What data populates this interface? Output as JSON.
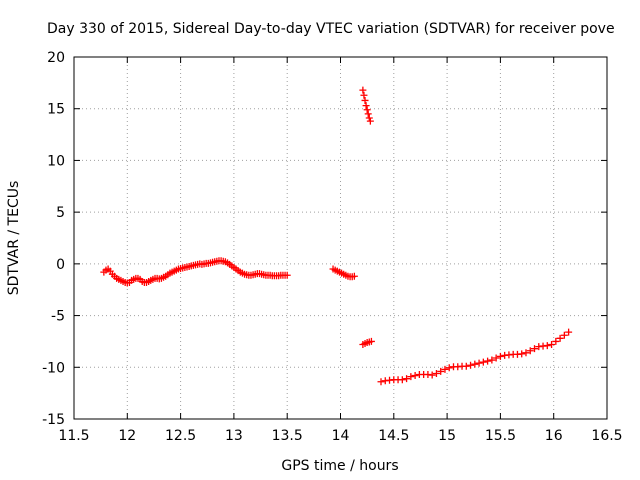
{
  "chart_data": {
    "type": "scatter",
    "title": "Day 330 of 2015, Sidereal Day-to-day VTEC variation (SDTVAR) for receiver pove",
    "xlabel": "GPS time / hours",
    "ylabel": "SDTVAR / TECUs",
    "xlim": [
      11.5,
      16.5
    ],
    "ylim": [
      -15,
      20
    ],
    "xticks": [
      "11.5",
      "12",
      "12.5",
      "13",
      "13.5",
      "14",
      "14.5",
      "15",
      "15.5",
      "16",
      "16.5"
    ],
    "yticks": [
      "-15",
      "-10",
      "-5",
      "0",
      "5",
      "10",
      "15",
      "20"
    ],
    "grid": true,
    "marker": "plus",
    "color": "#ff0000",
    "series": [
      {
        "name": "segment-1",
        "x": [
          11.78,
          11.8,
          11.82,
          11.84,
          11.86,
          11.88,
          11.9,
          11.92,
          11.94,
          11.96,
          11.98,
          12.0,
          12.02,
          12.04,
          12.06,
          12.08,
          12.1,
          12.12,
          12.14,
          12.16,
          12.18,
          12.2,
          12.22,
          12.24,
          12.26,
          12.28,
          12.3,
          12.32,
          12.34,
          12.36,
          12.38,
          12.4,
          12.42,
          12.44,
          12.46,
          12.48,
          12.5,
          12.52,
          12.54,
          12.56,
          12.58,
          12.6,
          12.62,
          12.64,
          12.66,
          12.68,
          12.7,
          12.72,
          12.74,
          12.76,
          12.78,
          12.8,
          12.82,
          12.84,
          12.86,
          12.88,
          12.9,
          12.92,
          12.94,
          12.96,
          12.98,
          13.0,
          13.02,
          13.04,
          13.06,
          13.08,
          13.1,
          13.12,
          13.14,
          13.16,
          13.18,
          13.2,
          13.22,
          13.24,
          13.26,
          13.28,
          13.3,
          13.32,
          13.34,
          13.36,
          13.38,
          13.4,
          13.42,
          13.44,
          13.46,
          13.48,
          13.5
        ],
        "y": [
          -0.8,
          -0.6,
          -0.5,
          -0.7,
          -1.0,
          -1.2,
          -1.4,
          -1.5,
          -1.6,
          -1.7,
          -1.8,
          -1.85,
          -1.8,
          -1.6,
          -1.5,
          -1.4,
          -1.4,
          -1.5,
          -1.7,
          -1.8,
          -1.8,
          -1.7,
          -1.6,
          -1.5,
          -1.4,
          -1.4,
          -1.45,
          -1.4,
          -1.3,
          -1.2,
          -1.05,
          -0.9,
          -0.8,
          -0.7,
          -0.6,
          -0.5,
          -0.45,
          -0.4,
          -0.35,
          -0.3,
          -0.25,
          -0.2,
          -0.15,
          -0.1,
          -0.05,
          0.0,
          -0.05,
          0.0,
          0.05,
          0.05,
          0.1,
          0.15,
          0.2,
          0.25,
          0.3,
          0.3,
          0.25,
          0.2,
          0.1,
          -0.05,
          -0.2,
          -0.35,
          -0.5,
          -0.65,
          -0.8,
          -0.9,
          -1.0,
          -1.05,
          -1.1,
          -1.1,
          -1.05,
          -1.0,
          -0.95,
          -0.95,
          -1.0,
          -1.05,
          -1.1,
          -1.1,
          -1.1,
          -1.15,
          -1.15,
          -1.15,
          -1.15,
          -1.1,
          -1.1,
          -1.1,
          -1.1
        ]
      },
      {
        "name": "segment-2",
        "x": [
          13.93,
          13.95,
          13.97,
          13.99,
          14.01,
          14.03,
          14.05,
          14.07,
          14.09,
          14.11,
          14.13
        ],
        "y": [
          -0.5,
          -0.6,
          -0.7,
          -0.8,
          -0.9,
          -1.0,
          -1.1,
          -1.2,
          -1.25,
          -1.25,
          -1.2
        ]
      },
      {
        "name": "segment-3",
        "x": [
          14.21,
          14.22,
          14.23,
          14.24,
          14.25,
          14.26,
          14.27,
          14.28
        ],
        "y": [
          16.8,
          16.3,
          15.8,
          15.3,
          14.9,
          14.5,
          14.1,
          13.8
        ]
      },
      {
        "name": "segment-4",
        "x": [
          14.21,
          14.23,
          14.25,
          14.27,
          14.29
        ],
        "y": [
          -7.8,
          -7.7,
          -7.6,
          -7.55,
          -7.5
        ]
      },
      {
        "name": "segment-5",
        "x": [
          14.38,
          14.42,
          14.46,
          14.5,
          14.54,
          14.58,
          14.62,
          14.66,
          14.7,
          14.74,
          14.78,
          14.82,
          14.86,
          14.9,
          14.94,
          14.98,
          15.02,
          15.06,
          15.1,
          15.14,
          15.18,
          15.22,
          15.26,
          15.3,
          15.34,
          15.38,
          15.42,
          15.46,
          15.5,
          15.54,
          15.58,
          15.62,
          15.66,
          15.7,
          15.74,
          15.78,
          15.82,
          15.86,
          15.9,
          15.94,
          15.98,
          16.02,
          16.06,
          16.1,
          16.14
        ],
        "y": [
          -11.4,
          -11.3,
          -11.25,
          -11.2,
          -11.2,
          -11.2,
          -11.1,
          -10.9,
          -10.8,
          -10.7,
          -10.7,
          -10.7,
          -10.75,
          -10.6,
          -10.4,
          -10.2,
          -10.05,
          -9.95,
          -9.95,
          -9.9,
          -9.9,
          -9.8,
          -9.7,
          -9.6,
          -9.5,
          -9.4,
          -9.3,
          -9.1,
          -8.95,
          -8.85,
          -8.8,
          -8.75,
          -8.75,
          -8.7,
          -8.6,
          -8.4,
          -8.2,
          -8.0,
          -7.95,
          -7.9,
          -7.8,
          -7.5,
          -7.2,
          -6.9,
          -6.6
        ]
      }
    ]
  }
}
